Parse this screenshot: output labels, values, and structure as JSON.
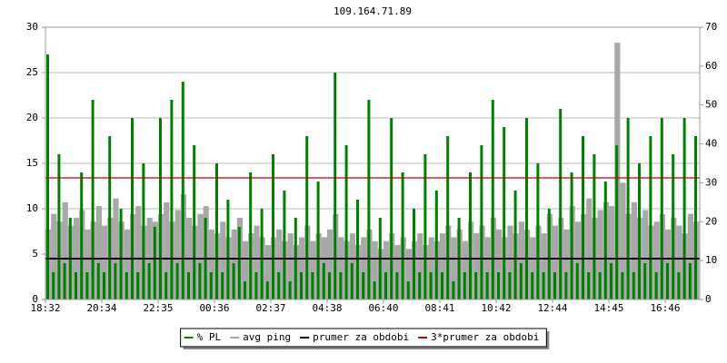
{
  "chart_data": {
    "type": "bar",
    "title": "109.164.71.89",
    "categories": [
      "18:32",
      null,
      null,
      null,
      null,
      null,
      null,
      null,
      null,
      null,
      "20:34",
      null,
      null,
      null,
      null,
      null,
      null,
      null,
      null,
      null,
      "22:35",
      null,
      null,
      null,
      null,
      null,
      null,
      null,
      null,
      null,
      "00:36",
      null,
      null,
      null,
      null,
      null,
      null,
      null,
      null,
      null,
      "02:37",
      null,
      null,
      null,
      null,
      null,
      null,
      null,
      null,
      null,
      "04:38",
      null,
      null,
      null,
      null,
      null,
      null,
      null,
      null,
      null,
      "06:40",
      null,
      null,
      null,
      null,
      null,
      null,
      null,
      null,
      null,
      "08:41",
      null,
      null,
      null,
      null,
      null,
      null,
      null,
      null,
      null,
      "10:42",
      null,
      null,
      null,
      null,
      null,
      null,
      null,
      null,
      null,
      "12:44",
      null,
      null,
      null,
      null,
      null,
      null,
      null,
      null,
      null,
      "14:45",
      null,
      null,
      null,
      null,
      null,
      null,
      null,
      null,
      null,
      "16:46",
      null,
      null,
      null,
      null,
      null
    ],
    "series": [
      {
        "name": "% PL",
        "color": "#008000",
        "axis": "y",
        "values": [
          27,
          3,
          16,
          4,
          9,
          3,
          14,
          3,
          22,
          4,
          3,
          18,
          4,
          10,
          3,
          20,
          3,
          15,
          4,
          8,
          20,
          3,
          22,
          4,
          24,
          3,
          17,
          4,
          9,
          3,
          15,
          3,
          11,
          4,
          8,
          2,
          14,
          3,
          10,
          2,
          16,
          3,
          12,
          2,
          9,
          3,
          18,
          3,
          13,
          4,
          3,
          25,
          3,
          17,
          4,
          11,
          3,
          22,
          2,
          9,
          3,
          20,
          3,
          14,
          2,
          10,
          3,
          16,
          3,
          12,
          3,
          18,
          2,
          9,
          3,
          14,
          3,
          17,
          3,
          22,
          3,
          19,
          3,
          12,
          4,
          20,
          3,
          15,
          3,
          10,
          3,
          21,
          3,
          14,
          4,
          18,
          3,
          16,
          3,
          13,
          4,
          17,
          3,
          20,
          3,
          15,
          4,
          18,
          3,
          20,
          4,
          16,
          3,
          20,
          4,
          18
        ]
      },
      {
        "name": "avg ping",
        "color": "#a8a8a8",
        "axis": "y2",
        "values": [
          18,
          22,
          20,
          25,
          19,
          21,
          23,
          18,
          20,
          24,
          19,
          21,
          26,
          20,
          18,
          22,
          24,
          19,
          21,
          20,
          22,
          25,
          20,
          23,
          27,
          21,
          19,
          22,
          24,
          18,
          17,
          20,
          16,
          18,
          21,
          15,
          17,
          19,
          16,
          14,
          16,
          18,
          15,
          17,
          14,
          16,
          19,
          15,
          17,
          16,
          18,
          22,
          16,
          15,
          17,
          14,
          16,
          18,
          15,
          13,
          15,
          17,
          14,
          16,
          13,
          15,
          17,
          14,
          16,
          15,
          17,
          19,
          16,
          18,
          15,
          20,
          17,
          19,
          16,
          21,
          18,
          16,
          19,
          17,
          20,
          18,
          16,
          19,
          17,
          22,
          19,
          21,
          18,
          24,
          20,
          22,
          26,
          21,
          23,
          25,
          24,
          66,
          30,
          22,
          25,
          21,
          23,
          19,
          20,
          22,
          18,
          21,
          19,
          17,
          22,
          20
        ]
      },
      {
        "name": "prumer za obdobi",
        "color": "#000000",
        "value": 4.5
      },
      {
        "name": "3*prumer za obdobi",
        "color": "#c00000",
        "value": 13.4
      }
    ],
    "ylim": [
      0,
      30
    ],
    "yticks": [
      0,
      5,
      10,
      15,
      20,
      25,
      30
    ],
    "ytick_color": "#008000",
    "y2lim": [
      0,
      70
    ],
    "y2ticks": [
      0,
      10,
      20,
      30,
      40,
      50,
      60,
      70
    ],
    "y2tick_color": "#808080",
    "grid": true,
    "legend": "bottom"
  }
}
